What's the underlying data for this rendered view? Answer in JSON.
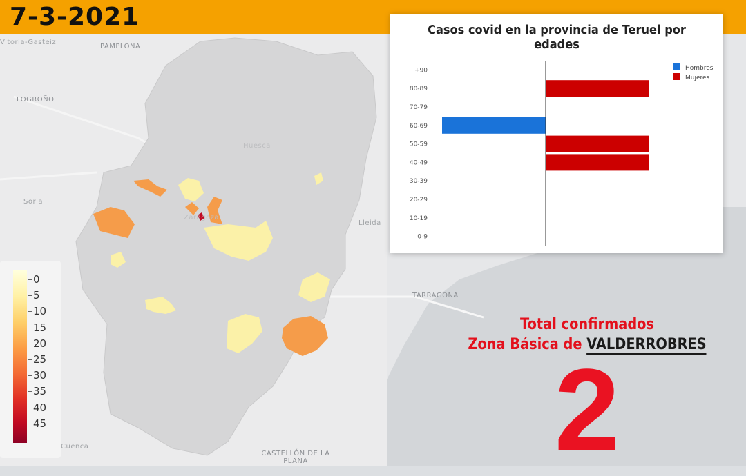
{
  "date": "7-3-2021",
  "map": {
    "places": [
      "Vitoria-Gasteiz",
      "PAMPLONA",
      "LOGROÑO",
      "Soria",
      "Huesca",
      "Zaragoza",
      "Lleida",
      "TARRAGONA",
      "Cuenca",
      "CASTELLÓN DE LA PLANA"
    ],
    "legend_labels": [
      "0",
      "5",
      "10",
      "15",
      "20",
      "25",
      "30",
      "35",
      "40",
      "45"
    ]
  },
  "chart_data": {
    "type": "bar",
    "orientation": "horizontal",
    "title": "Casos covid en la provincia de Teruel por edades",
    "categories": [
      "+90",
      "80-89",
      "70-79",
      "60-69",
      "50-59",
      "40-49",
      "30-39",
      "20-29",
      "10-19",
      "0-9"
    ],
    "series": [
      {
        "name": "Hombres",
        "color": "#1a73d9",
        "values": [
          0,
          0,
          0,
          1,
          0,
          0,
          0,
          0,
          0,
          0
        ]
      },
      {
        "name": "Mujeres",
        "color": "#cc0000",
        "values": [
          0,
          1,
          0,
          0,
          1,
          1,
          0,
          0,
          0,
          0
        ]
      }
    ],
    "xlim": [
      -1,
      1
    ],
    "legend_position": "top-right",
    "grid": false
  },
  "summary": {
    "line1": "Total confirmados",
    "line2_prefix": "Zona Básica de",
    "zone": "VALDERROBRES",
    "total": "2"
  }
}
